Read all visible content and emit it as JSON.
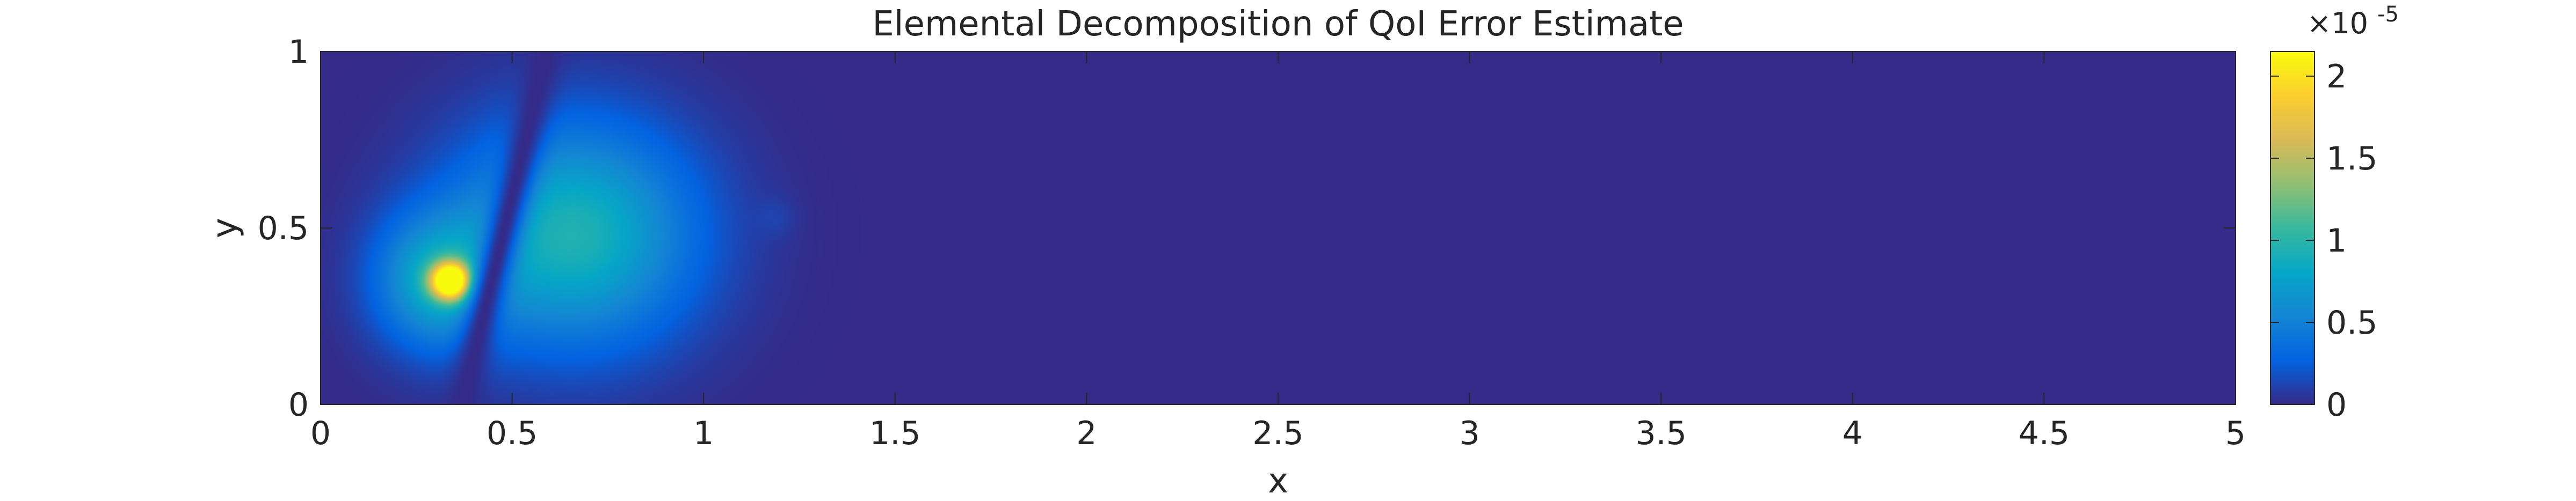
{
  "chart_data": {
    "type": "heatmap",
    "title": "Elemental Decomposition of QoI Error Estimate",
    "xlabel": "x",
    "ylabel": "y",
    "xlim": [
      0,
      5
    ],
    "ylim": [
      0,
      1
    ],
    "x_ticks": [
      {
        "value": 0,
        "label": "0"
      },
      {
        "value": 0.5,
        "label": "0.5"
      },
      {
        "value": 1,
        "label": "1"
      },
      {
        "value": 1.5,
        "label": "1.5"
      },
      {
        "value": 2,
        "label": "2"
      },
      {
        "value": 2.5,
        "label": "2.5"
      },
      {
        "value": 3,
        "label": "3"
      },
      {
        "value": 3.5,
        "label": "3.5"
      },
      {
        "value": 4,
        "label": "4"
      },
      {
        "value": 4.5,
        "label": "4.5"
      },
      {
        "value": 5,
        "label": "5"
      }
    ],
    "y_ticks": [
      {
        "value": 0,
        "label": "0"
      },
      {
        "value": 0.5,
        "label": "0.5"
      },
      {
        "value": 1,
        "label": "1"
      }
    ],
    "colorbar": {
      "colormap": "parula",
      "range": [
        0,
        2.15
      ],
      "multiplier_base": "×10",
      "multiplier_exponent": "-5",
      "ticks": [
        {
          "value": 0,
          "label": "0"
        },
        {
          "value": 0.5,
          "label": "0.5"
        },
        {
          "value": 1,
          "label": "1"
        },
        {
          "value": 1.5,
          "label": "1.5"
        },
        {
          "value": 2,
          "label": "2"
        }
      ],
      "colors": [
        "#352a87",
        "#0363e1",
        "#1485d4",
        "#06a7c6",
        "#38b99e",
        "#92bf73",
        "#d9ba56",
        "#fcce2e",
        "#f9fb0e"
      ]
    },
    "field_features": [
      {
        "cx": 0.34,
        "cy": 0.35,
        "sx": 0.035,
        "sy": 0.035,
        "peak": 2.15
      },
      {
        "cx": 0.3,
        "cy": 0.35,
        "sx": 0.11,
        "sy": 0.13,
        "peak": 0.75
      },
      {
        "cx": 0.66,
        "cy": 0.48,
        "sx": 0.22,
        "sy": 0.22,
        "peak": 0.95
      },
      {
        "cx": 1.19,
        "cy": 0.53,
        "sx": 0.035,
        "sy": 0.04,
        "peak": 0.07
      }
    ],
    "grid": false,
    "legend": "none"
  }
}
